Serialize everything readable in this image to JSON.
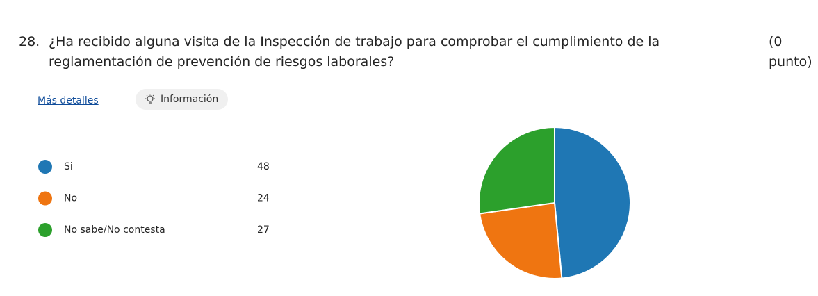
{
  "question": {
    "number": "28.",
    "text": "¿Ha recibido alguna visita de la Inspección de trabajo para comprobar el cumplimiento de la reglamentación de prevención de riesgos laborales?",
    "points": "(0 punto)"
  },
  "links": {
    "details": "Más detalles",
    "info": "Información"
  },
  "chart_data": {
    "type": "pie",
    "categories": [
      "Si",
      "No",
      "No sabe/No contesta"
    ],
    "values": [
      48,
      24,
      27
    ],
    "colors": [
      "#1f77b4",
      "#ef7511",
      "#2ca02c"
    ]
  }
}
